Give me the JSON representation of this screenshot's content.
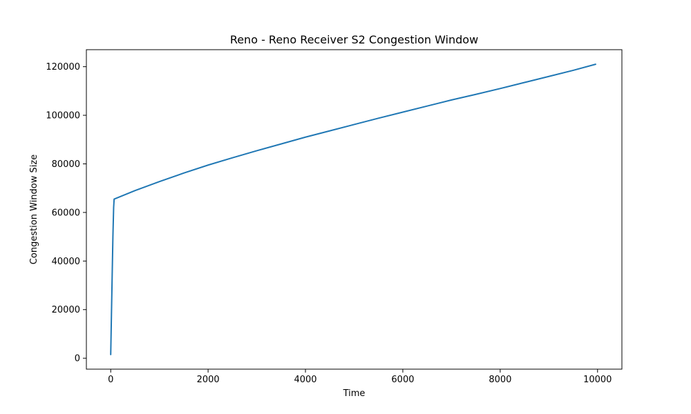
{
  "chart_data": {
    "type": "line",
    "title": "Reno - Reno Receiver S2 Congestion Window",
    "xlabel": "Time",
    "ylabel": "Congestion Window Size",
    "xlim": [
      -500,
      10500
    ],
    "ylim": [
      -4500,
      127000
    ],
    "x_ticks": [
      0,
      2000,
      4000,
      6000,
      8000,
      10000
    ],
    "x_tick_labels": [
      "0",
      "2000",
      "4000",
      "6000",
      "8000",
      "10000"
    ],
    "y_ticks": [
      0,
      20000,
      40000,
      60000,
      80000,
      100000,
      120000
    ],
    "y_tick_labels": [
      "0",
      "20000",
      "40000",
      "60000",
      "80000",
      "100000",
      "120000"
    ],
    "grid": false,
    "series": [
      {
        "color": "#1f77b4",
        "x": [
          0,
          15,
          30,
          45,
          60,
          70,
          500,
          1000,
          1500,
          2000,
          2500,
          3000,
          3500,
          4000,
          4500,
          5000,
          5500,
          6000,
          6500,
          7000,
          7500,
          8000,
          8500,
          9000,
          9500,
          9960
        ],
        "y": [
          1500,
          18000,
          34000,
          50000,
          62000,
          65500,
          69000,
          72700,
          76200,
          79500,
          82500,
          85400,
          88200,
          91000,
          93600,
          96200,
          98800,
          101300,
          103800,
          106300,
          108600,
          111000,
          113500,
          116000,
          118500,
          121000
        ]
      }
    ]
  }
}
